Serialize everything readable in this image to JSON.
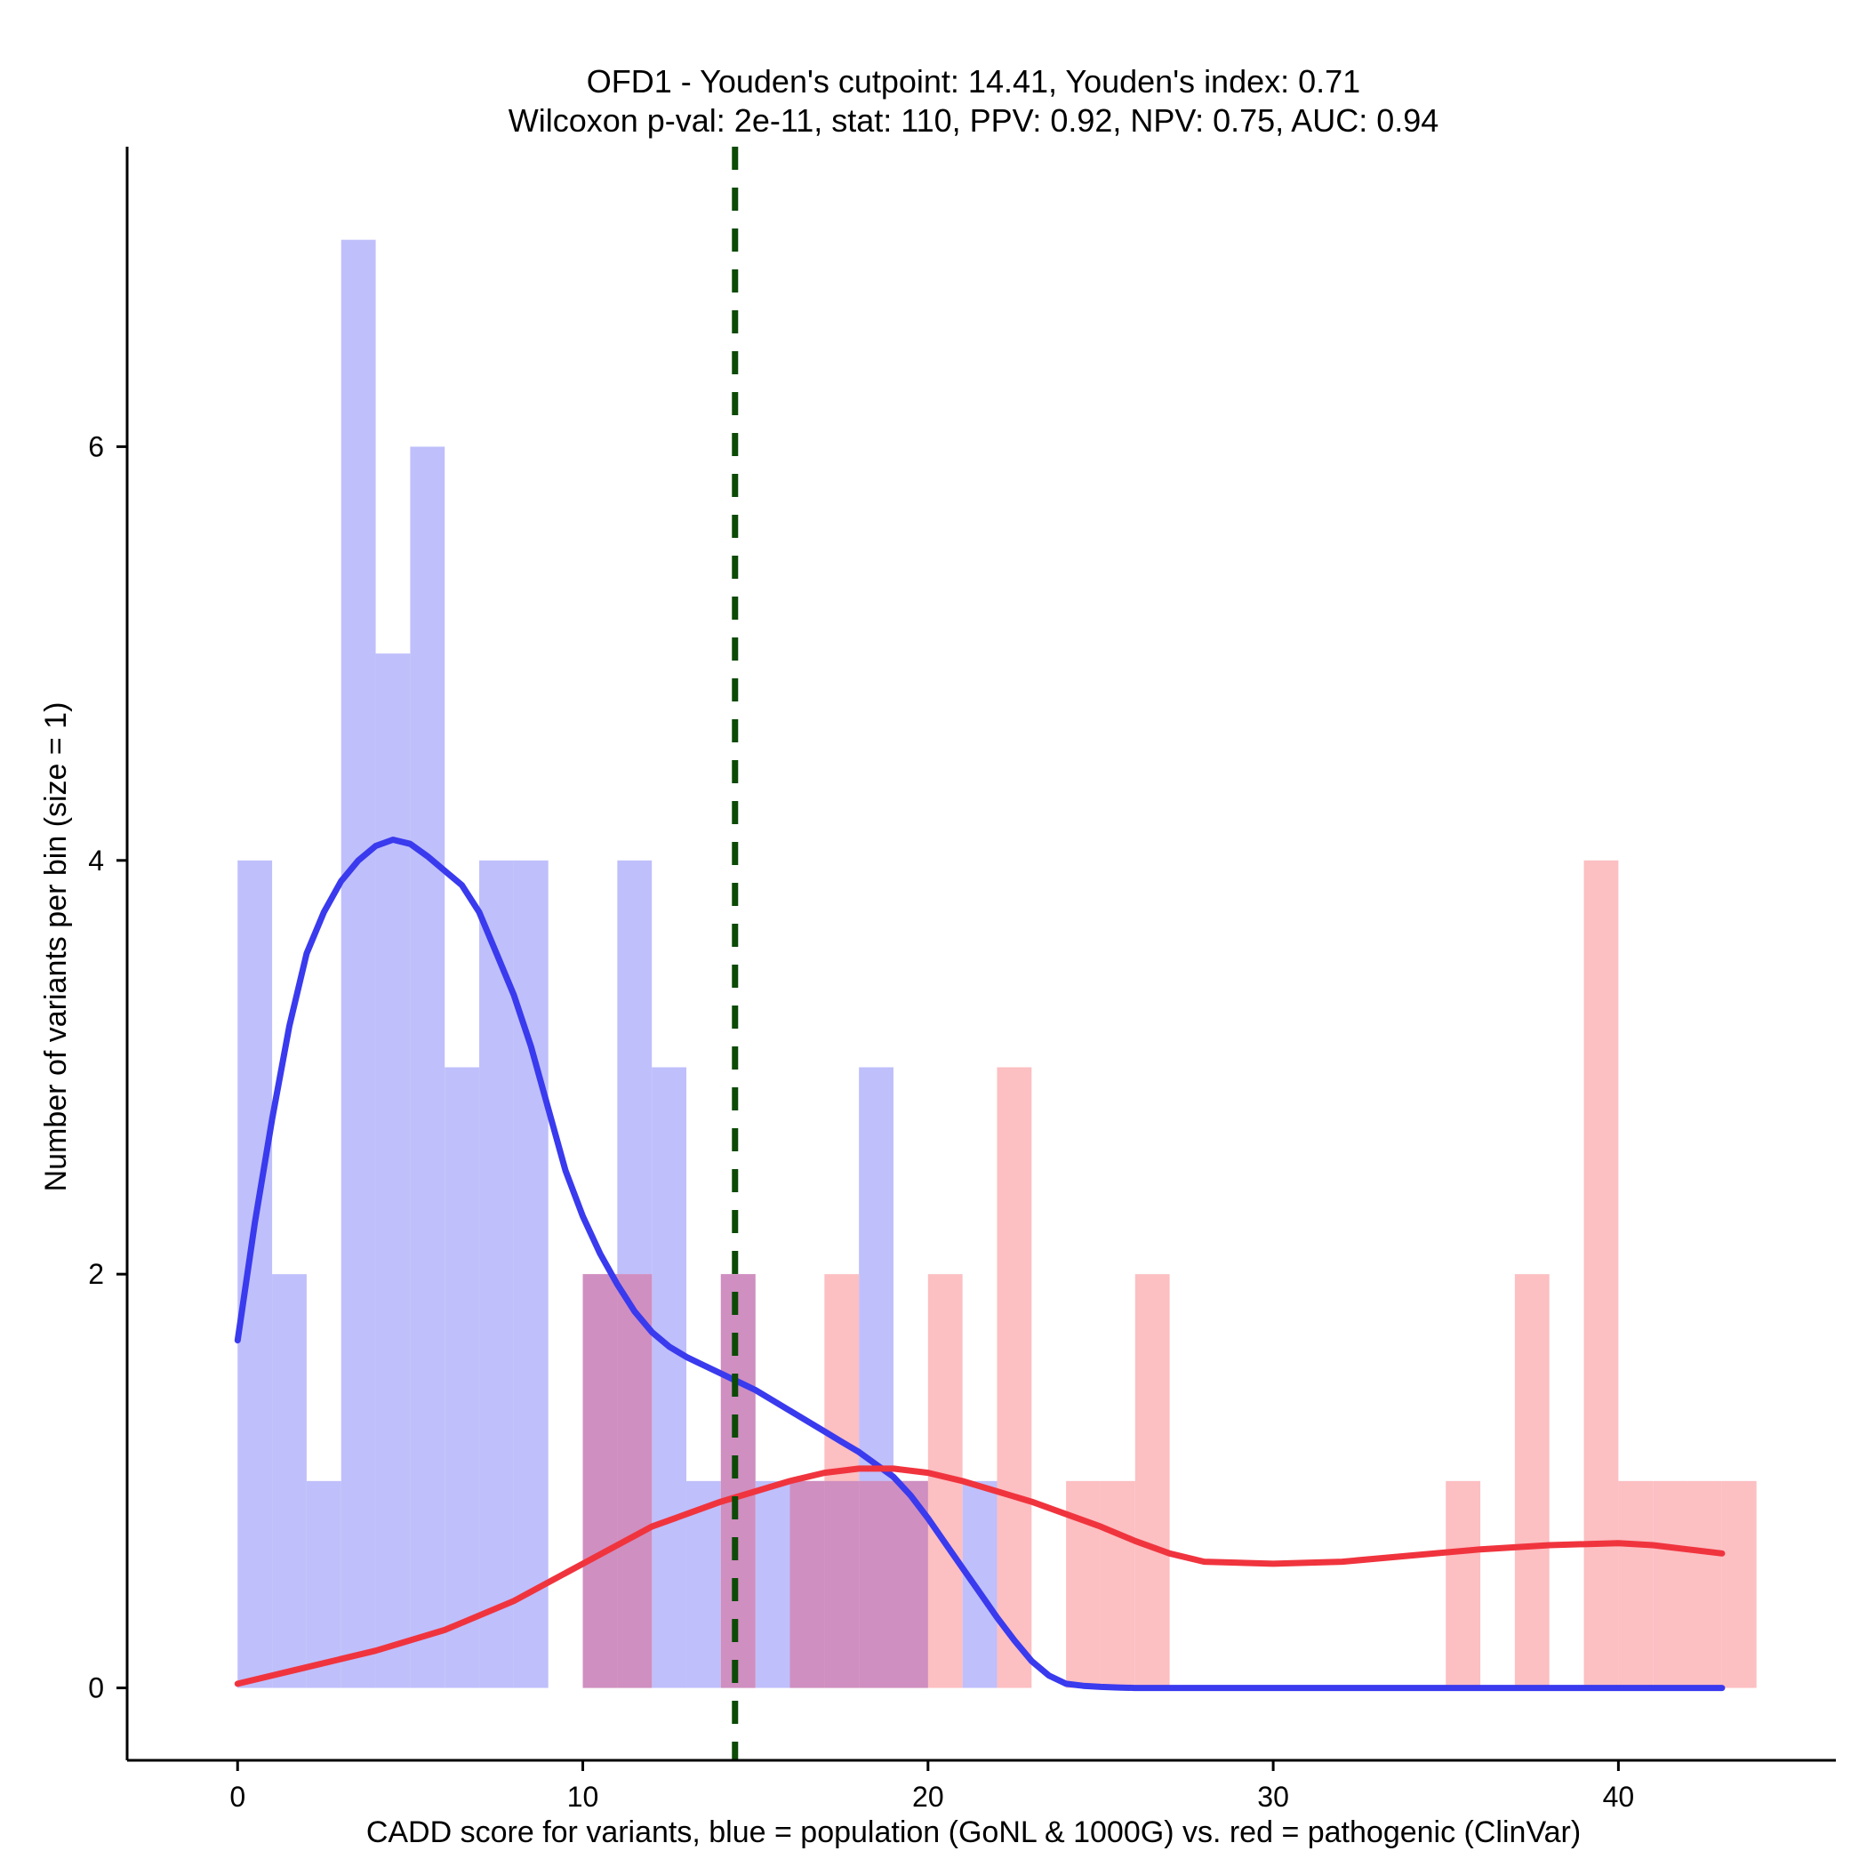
{
  "chart_data": {
    "type": "histogram",
    "title": "OFD1 - Youden's cutpoint: 14.41, Youden's index: 0.71",
    "subtitle": "Wilcoxon p-val: 2e-11, stat: 110, PPV: 0.92, NPV: 0.75, AUC: 0.94",
    "xlabel": "CADD score for variants, blue = population (GoNL & 1000G) vs. red = pathogenic (ClinVar)",
    "ylabel": "Number of variants per bin (size = 1)",
    "xlim": [
      -3.2,
      46.3
    ],
    "ylim": [
      -0.35,
      7.45
    ],
    "x_ticks": [
      0,
      10,
      20,
      30,
      40
    ],
    "y_ticks": [
      0,
      2,
      4,
      6
    ],
    "bin_width": 1,
    "cutpoint": 14.41,
    "colors": {
      "population_bar": "#bfbffb",
      "pathogenic_bar": "#fcbfc2",
      "overlap_bar": "#cf8fc0",
      "population_line": "#3a3aee",
      "pathogenic_line": "#f0343e",
      "cutpoint_line": "#0c4a06",
      "axis": "#000000"
    },
    "series": [
      {
        "name": "population (GoNL & 1000G)",
        "bins": [
          {
            "x": 0,
            "count": 4
          },
          {
            "x": 1,
            "count": 2
          },
          {
            "x": 2,
            "count": 1
          },
          {
            "x": 3,
            "count": 7
          },
          {
            "x": 4,
            "count": 5
          },
          {
            "x": 5,
            "count": 6
          },
          {
            "x": 6,
            "count": 3
          },
          {
            "x": 7,
            "count": 4
          },
          {
            "x": 8,
            "count": 4
          },
          {
            "x": 10,
            "count": 2
          },
          {
            "x": 11,
            "count": 4
          },
          {
            "x": 12,
            "count": 3
          },
          {
            "x": 13,
            "count": 1
          },
          {
            "x": 14,
            "count": 2
          },
          {
            "x": 15,
            "count": 1
          },
          {
            "x": 16,
            "count": 1
          },
          {
            "x": 17,
            "count": 1
          },
          {
            "x": 18,
            "count": 3
          },
          {
            "x": 19,
            "count": 1
          },
          {
            "x": 21,
            "count": 1
          }
        ]
      },
      {
        "name": "pathogenic (ClinVar)",
        "bins": [
          {
            "x": 10,
            "count": 2
          },
          {
            "x": 11,
            "count": 2
          },
          {
            "x": 14,
            "count": 2
          },
          {
            "x": 16,
            "count": 1
          },
          {
            "x": 17,
            "count": 2
          },
          {
            "x": 18,
            "count": 1
          },
          {
            "x": 19,
            "count": 1
          },
          {
            "x": 20,
            "count": 2
          },
          {
            "x": 22,
            "count": 3
          },
          {
            "x": 24,
            "count": 1
          },
          {
            "x": 25,
            "count": 1
          },
          {
            "x": 26,
            "count": 2
          },
          {
            "x": 35,
            "count": 1
          },
          {
            "x": 37,
            "count": 2
          },
          {
            "x": 39,
            "count": 4
          },
          {
            "x": 40,
            "count": 1
          },
          {
            "x": 41,
            "count": 1
          },
          {
            "x": 42,
            "count": 1
          },
          {
            "x": 43,
            "count": 1
          }
        ]
      }
    ],
    "density_lines": [
      {
        "name": "population density",
        "x": [
          0,
          0.5,
          1,
          1.5,
          2,
          2.5,
          3,
          3.5,
          4,
          4.5,
          5,
          5.5,
          6,
          6.5,
          7,
          7.5,
          8,
          8.5,
          9,
          9.5,
          10,
          10.5,
          11,
          11.5,
          12,
          12.5,
          13,
          13.5,
          14,
          14.5,
          15,
          15.5,
          16,
          16.5,
          17,
          17.5,
          18,
          18.5,
          19,
          19.5,
          20,
          20.5,
          21,
          21.5,
          22,
          22.5,
          23,
          23.5,
          24,
          24.5,
          25,
          25.5,
          26,
          26.5,
          27,
          30,
          35,
          40,
          43
        ],
        "y": [
          1.68,
          2.25,
          2.75,
          3.2,
          3.55,
          3.75,
          3.9,
          4.0,
          4.07,
          4.1,
          4.08,
          4.02,
          3.95,
          3.88,
          3.75,
          3.55,
          3.35,
          3.1,
          2.8,
          2.5,
          2.28,
          2.1,
          1.95,
          1.82,
          1.72,
          1.65,
          1.6,
          1.56,
          1.52,
          1.48,
          1.44,
          1.39,
          1.34,
          1.29,
          1.24,
          1.19,
          1.14,
          1.08,
          1.02,
          0.93,
          0.82,
          0.7,
          0.58,
          0.46,
          0.34,
          0.23,
          0.13,
          0.06,
          0.02,
          0.01,
          0.005,
          0.002,
          0.0,
          0.0,
          0.0,
          0.0,
          0.0,
          0.0,
          0.0
        ]
      },
      {
        "name": "pathogenic density",
        "x": [
          0,
          2,
          4,
          6,
          8,
          10,
          12,
          13,
          14,
          15,
          16,
          17,
          18,
          19,
          20,
          21,
          22,
          23,
          24,
          25,
          26,
          27,
          28,
          30,
          32,
          34,
          36,
          38,
          40,
          41,
          42,
          43
        ],
        "y": [
          0.02,
          0.1,
          0.18,
          0.28,
          0.42,
          0.6,
          0.78,
          0.84,
          0.9,
          0.95,
          1.0,
          1.04,
          1.06,
          1.06,
          1.04,
          1.0,
          0.95,
          0.9,
          0.84,
          0.78,
          0.71,
          0.65,
          0.61,
          0.6,
          0.61,
          0.64,
          0.67,
          0.69,
          0.7,
          0.69,
          0.67,
          0.65
        ]
      }
    ]
  }
}
